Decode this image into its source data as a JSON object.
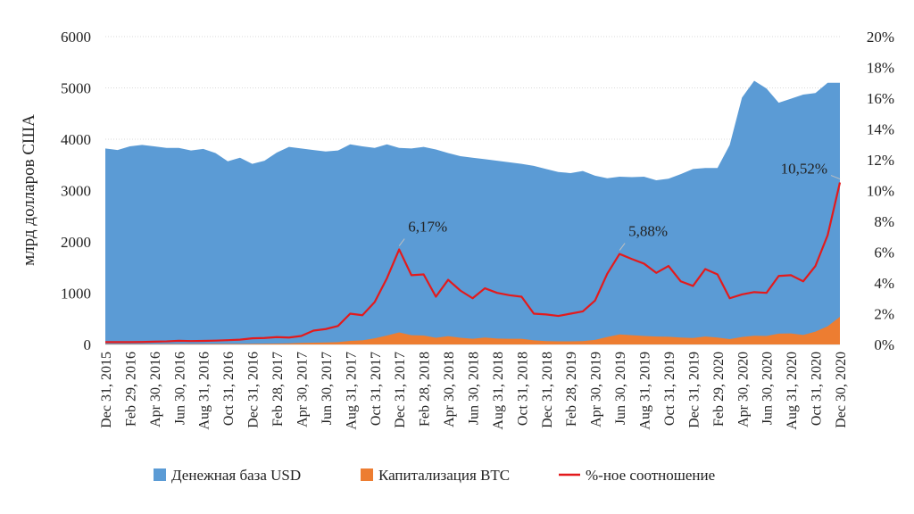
{
  "chart_data": {
    "type": "area",
    "ylabel": "млрд долларов США",
    "ylim": [
      0,
      6000
    ],
    "yticks": [
      "0",
      "1000",
      "2000",
      "3000",
      "4000",
      "5000",
      "6000"
    ],
    "y2lim": [
      0,
      20
    ],
    "y2ticks": [
      "0%",
      "2%",
      "4%",
      "6%",
      "8%",
      "10%",
      "12%",
      "14%",
      "16%",
      "18%",
      "20%"
    ],
    "grid": true,
    "legend_position": "bottom",
    "x_labels": [
      "Dec 31, 2015",
      "Feb 29, 2016",
      "Apr 30, 2016",
      "Jun 30, 2016",
      "Aug 31, 2016",
      "Oct 31, 2016",
      "Dec 31, 2016",
      "Feb 28, 2017",
      "Apr 30, 2017",
      "Jun 30, 2017",
      "Aug 31, 2017",
      "Oct 31, 2017",
      "Dec 31, 2017",
      "Feb 28, 2018",
      "Apr 30, 2018",
      "Jun 30, 2018",
      "Aug 31, 2018",
      "Oct 31, 2018",
      "Dec 31, 2018",
      "Feb 28, 2019",
      "Apr 30, 2019",
      "Jun 30, 2019",
      "Aug 31, 2019",
      "Oct 31, 2019",
      "Dec 31, 2019",
      "Feb 29, 2020",
      "Apr 30, 2020",
      "Jun 30, 2020",
      "Aug 31, 2020",
      "Oct 31, 2020",
      "Dec 30, 2020"
    ],
    "series": [
      {
        "name": "Денежная база USD",
        "type": "area",
        "axis": "left",
        "color": "#5b9bd5",
        "values": [
          3820,
          3790,
          3860,
          3890,
          3860,
          3830,
          3830,
          3780,
          3810,
          3730,
          3570,
          3640,
          3520,
          3580,
          3740,
          3850,
          3820,
          3790,
          3760,
          3780,
          3900,
          3860,
          3830,
          3900,
          3830,
          3820,
          3850,
          3800,
          3730,
          3670,
          3640,
          3610,
          3580,
          3550,
          3520,
          3480,
          3420,
          3360,
          3340,
          3380,
          3290,
          3240,
          3270,
          3260,
          3270,
          3200,
          3230,
          3320,
          3420,
          3440,
          3440,
          3890,
          4810,
          5140,
          4990,
          4710,
          4790,
          4870,
          4900,
          5100,
          5100
        ]
      },
      {
        "name": "Капитализация BTC",
        "type": "area",
        "axis": "left",
        "color": "#ed7d31",
        "values": [
          6,
          6,
          6,
          6,
          7,
          8,
          9,
          8,
          9,
          10,
          10,
          11,
          12,
          15,
          18,
          22,
          30,
          35,
          40,
          45,
          70,
          80,
          120,
          175,
          235,
          180,
          175,
          130,
          160,
          130,
          110,
          135,
          115,
          110,
          110,
          80,
          65,
          60,
          62,
          65,
          90,
          145,
          195,
          180,
          165,
          155,
          150,
          135,
          125,
          155,
          135,
          105,
          145,
          170,
          165,
          210,
          215,
          185,
          250,
          355,
          540
        ]
      },
      {
        "name": "%-ное соотношение",
        "type": "line",
        "axis": "right",
        "color": "#e31a1c",
        "values": [
          0.15,
          0.15,
          0.15,
          0.16,
          0.18,
          0.2,
          0.24,
          0.22,
          0.23,
          0.25,
          0.28,
          0.31,
          0.4,
          0.42,
          0.48,
          0.45,
          0.55,
          0.9,
          1.0,
          1.2,
          2.0,
          1.9,
          2.75,
          4.3,
          6.17,
          4.5,
          4.55,
          3.1,
          4.2,
          3.5,
          3.0,
          3.65,
          3.35,
          3.2,
          3.1,
          2.0,
          1.95,
          1.85,
          2.0,
          2.15,
          2.85,
          4.6,
          5.88,
          5.55,
          5.25,
          4.65,
          5.1,
          4.1,
          3.8,
          4.9,
          4.55,
          3.0,
          3.25,
          3.4,
          3.35,
          4.45,
          4.5,
          4.1,
          5.1,
          7.1,
          10.52
        ]
      }
    ],
    "annotations": [
      {
        "index": 24,
        "text": "6,17%"
      },
      {
        "index": 42,
        "text": "5,88%"
      },
      {
        "index": 60,
        "text": "10,52%"
      }
    ]
  }
}
